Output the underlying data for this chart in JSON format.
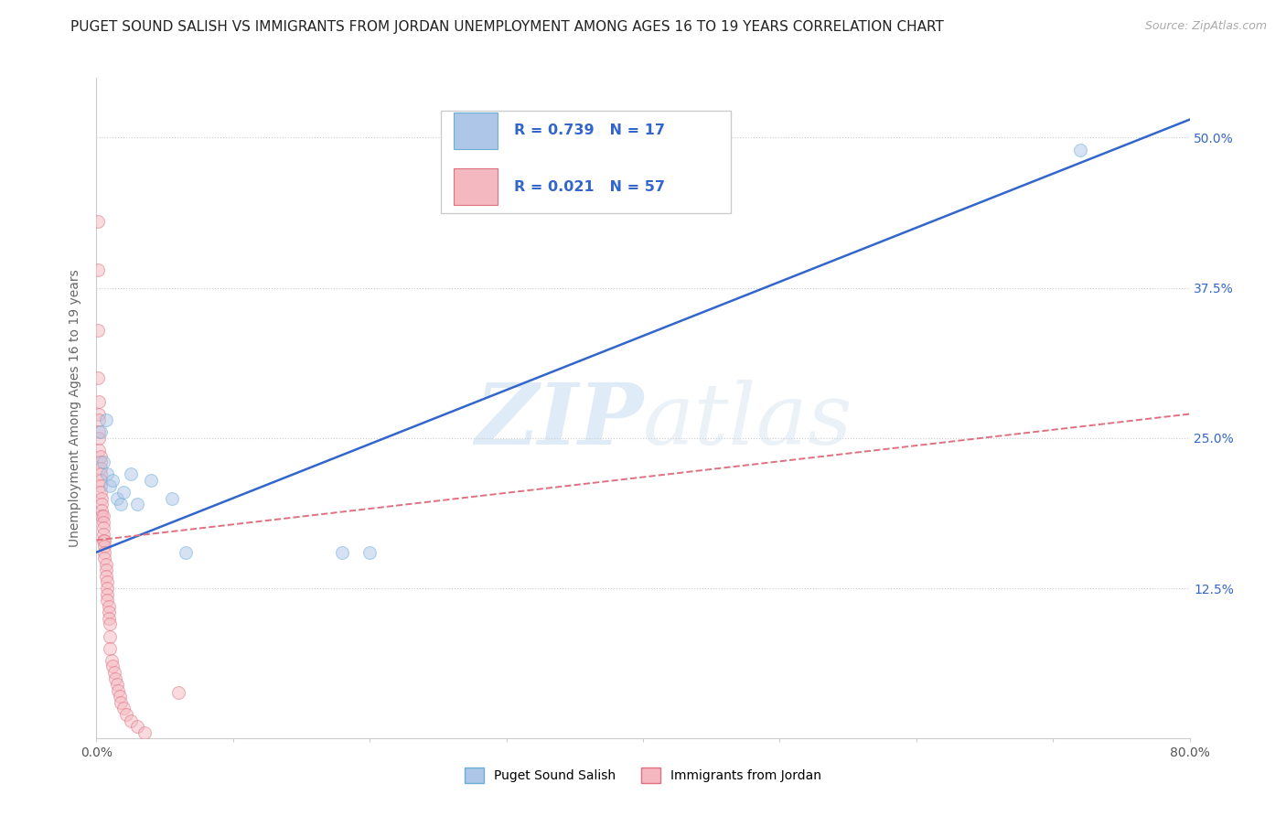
{
  "title": "PUGET SOUND SALISH VS IMMIGRANTS FROM JORDAN UNEMPLOYMENT AMONG AGES 16 TO 19 YEARS CORRELATION CHART",
  "source": "Source: ZipAtlas.com",
  "ylabel": "Unemployment Among Ages 16 to 19 years",
  "xlim": [
    0,
    0.8
  ],
  "ylim": [
    0,
    0.55
  ],
  "xticks": [
    0.0,
    0.1,
    0.2,
    0.3,
    0.4,
    0.5,
    0.6,
    0.7,
    0.8
  ],
  "yticks": [
    0.0,
    0.125,
    0.25,
    0.375,
    0.5
  ],
  "yticklabels_right": [
    "",
    "12.5%",
    "25.0%",
    "37.5%",
    "50.0%"
  ],
  "grid_color": "#cccccc",
  "background_color": "#ffffff",
  "watermark_zip": "ZIP",
  "watermark_atlas": "atlas",
  "blue_R": 0.739,
  "blue_N": 17,
  "pink_R": 0.021,
  "pink_N": 57,
  "blue_scatter_x": [
    0.003,
    0.005,
    0.007,
    0.008,
    0.01,
    0.012,
    0.015,
    0.018,
    0.02,
    0.025,
    0.03,
    0.04,
    0.055,
    0.065,
    0.18,
    0.2,
    0.72
  ],
  "blue_scatter_y": [
    0.255,
    0.23,
    0.265,
    0.22,
    0.21,
    0.215,
    0.2,
    0.195,
    0.205,
    0.22,
    0.195,
    0.215,
    0.2,
    0.155,
    0.155,
    0.155,
    0.49
  ],
  "pink_scatter_x": [
    0.001,
    0.001,
    0.001,
    0.001,
    0.002,
    0.002,
    0.002,
    0.002,
    0.002,
    0.002,
    0.003,
    0.003,
    0.003,
    0.003,
    0.003,
    0.003,
    0.003,
    0.004,
    0.004,
    0.004,
    0.004,
    0.005,
    0.005,
    0.005,
    0.005,
    0.005,
    0.006,
    0.006,
    0.006,
    0.006,
    0.007,
    0.007,
    0.007,
    0.008,
    0.008,
    0.008,
    0.008,
    0.009,
    0.009,
    0.009,
    0.01,
    0.01,
    0.01,
    0.011,
    0.012,
    0.013,
    0.014,
    0.015,
    0.016,
    0.017,
    0.018,
    0.02,
    0.022,
    0.025,
    0.03,
    0.035,
    0.06
  ],
  "pink_scatter_y": [
    0.43,
    0.39,
    0.34,
    0.3,
    0.28,
    0.27,
    0.265,
    0.255,
    0.25,
    0.24,
    0.235,
    0.23,
    0.225,
    0.22,
    0.215,
    0.21,
    0.205,
    0.2,
    0.195,
    0.19,
    0.185,
    0.185,
    0.18,
    0.175,
    0.17,
    0.165,
    0.165,
    0.16,
    0.155,
    0.15,
    0.145,
    0.14,
    0.135,
    0.13,
    0.125,
    0.12,
    0.115,
    0.11,
    0.105,
    0.1,
    0.095,
    0.085,
    0.075,
    0.065,
    0.06,
    0.055,
    0.05,
    0.045,
    0.04,
    0.035,
    0.03,
    0.025,
    0.02,
    0.015,
    0.01,
    0.005,
    0.038
  ],
  "blue_line_x": [
    0.0,
    0.8
  ],
  "blue_line_y": [
    0.155,
    0.515
  ],
  "pink_line_x": [
    0.0,
    0.8
  ],
  "pink_line_y": [
    0.165,
    0.27
  ],
  "blue_color": "#aec6e8",
  "blue_edge_color": "#6baed6",
  "pink_color": "#f4b8c1",
  "pink_edge_color": "#e07080",
  "blue_line_color": "#3366cc",
  "pink_line_color": "#e07080",
  "legend_R_color": "#3366cc",
  "legend_N_color": "#333333",
  "title_fontsize": 11,
  "axis_label_fontsize": 10,
  "tick_fontsize": 10,
  "scatter_size": 100,
  "scatter_alpha": 0.5
}
